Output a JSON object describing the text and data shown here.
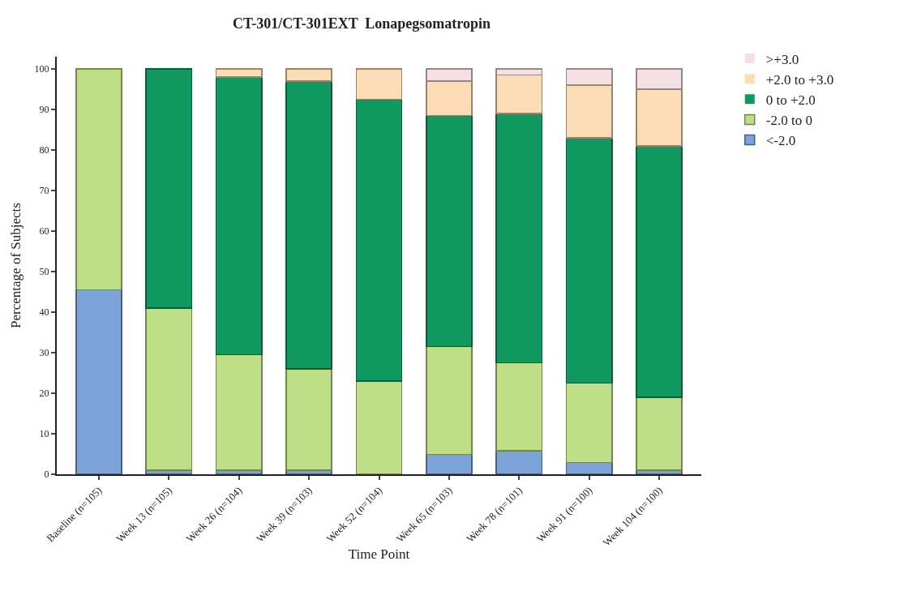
{
  "chart_data": {
    "type": "bar",
    "stacked": true,
    "title": "CT-301/CT-301EXT  Lonapegsomatropin",
    "xlabel": "Time Point",
    "ylabel": "Percentage of Subjects",
    "categories": [
      "Baseline (n=105)",
      "Week 13 (n=105)",
      "Week 26 (n=104)",
      "Week 39 (n=103)",
      "Week 52 (n=104)",
      "Week 65 (n=103)",
      "Week 78 (n=101)",
      "Week 91 (n=100)",
      "Week 104 (n=100)"
    ],
    "series": [
      {
        "name": "<-2.0",
        "color": "#7ba3d8",
        "values": [
          45.5,
          1,
          1,
          1,
          0,
          4.9,
          5.8,
          2.9,
          1
        ]
      },
      {
        "name": "-2.0 to 0",
        "color": "#bfdf86",
        "values": [
          54.5,
          40,
          28.5,
          25,
          23,
          26.6,
          21.7,
          19.6,
          18
        ]
      },
      {
        "name": "0 to +2.0",
        "color": "#0f9960",
        "values": [
          0,
          59,
          68.5,
          71,
          69.5,
          57,
          61.5,
          60.5,
          62
        ]
      },
      {
        "name": "+2.0 to +3.0",
        "color": "#fcdcb4",
        "values": [
          0,
          0,
          2,
          3,
          7.5,
          8.5,
          9.5,
          13,
          14
        ]
      },
      {
        "name": ">+3.0",
        "color": "#f5e0e3",
        "values": [
          0,
          0,
          0,
          0,
          0,
          3,
          1.5,
          4,
          5
        ]
      }
    ],
    "ylim": [
      0,
      103
    ],
    "yticks": [
      0,
      10,
      20,
      30,
      40,
      50,
      60,
      70,
      80,
      90,
      100
    ],
    "grid": false,
    "legend": "top right"
  }
}
